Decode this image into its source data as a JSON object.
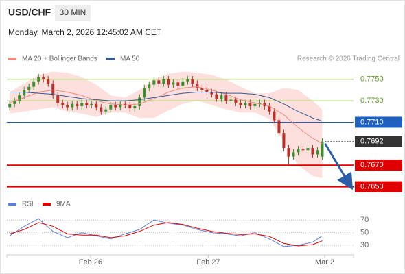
{
  "header": {
    "symbol": "USD/CHF",
    "interval": "30 MIN",
    "timestamp": "Monday, March 2, 2026 12:45:02 AM CET",
    "credit": "Research © 2026 Trading Central"
  },
  "chart_data": [
    {
      "type": "candlestick",
      "xlim": [
        -0.6,
        71.5
      ],
      "ylim": [
        0.7644,
        0.776
      ],
      "up_color": "#3c8d2f",
      "down_color": "#b8322a",
      "candles": {
        "open": [
          0.7724,
          0.7727,
          0.773,
          0.7735,
          0.774,
          0.7743,
          0.7748,
          0.7752,
          0.775,
          0.7746,
          0.7735,
          0.7728,
          0.7726,
          0.7724,
          0.7727,
          0.7725,
          0.7728,
          0.7726,
          0.7727,
          0.7724,
          0.772,
          0.7722,
          0.7726,
          0.7724,
          0.7727,
          0.7726,
          0.7723,
          0.7725,
          0.7733,
          0.7742,
          0.7745,
          0.7749,
          0.7746,
          0.775,
          0.7745,
          0.7747,
          0.7744,
          0.7748,
          0.775,
          0.7746,
          0.7742,
          0.774,
          0.7738,
          0.7736,
          0.7732,
          0.7735,
          0.773,
          0.7731,
          0.7728,
          0.7726,
          0.7728,
          0.7725,
          0.7727,
          0.7728,
          0.7725,
          0.772,
          0.7712,
          0.77,
          0.7686,
          0.7678,
          0.7682,
          0.7685,
          0.7684,
          0.7686,
          0.768,
          0.7678
        ],
        "high": [
          0.773,
          0.7733,
          0.7738,
          0.7743,
          0.7746,
          0.7751,
          0.7755,
          0.7755,
          0.7753,
          0.7749,
          0.7738,
          0.7731,
          0.7729,
          0.773,
          0.773,
          0.7731,
          0.7731,
          0.773,
          0.773,
          0.7727,
          0.7725,
          0.7729,
          0.7729,
          0.773,
          0.773,
          0.7729,
          0.7728,
          0.7736,
          0.7745,
          0.7748,
          0.7752,
          0.7752,
          0.7753,
          0.7753,
          0.775,
          0.775,
          0.7751,
          0.7753,
          0.7753,
          0.7749,
          0.7745,
          0.7743,
          0.7741,
          0.7739,
          0.7738,
          0.7738,
          0.7734,
          0.7734,
          0.7731,
          0.7731,
          0.7731,
          0.773,
          0.7731,
          0.7731,
          0.7728,
          0.7723,
          0.7715,
          0.7703,
          0.7689,
          0.7685,
          0.7688,
          0.7688,
          0.7689,
          0.7689,
          0.7687,
          0.7695
        ],
        "low": [
          0.7721,
          0.7724,
          0.7727,
          0.7732,
          0.7737,
          0.774,
          0.7745,
          0.7747,
          0.7743,
          0.7732,
          0.7725,
          0.7723,
          0.7721,
          0.7721,
          0.7722,
          0.7722,
          0.7723,
          0.7723,
          0.7721,
          0.7717,
          0.7717,
          0.7719,
          0.7721,
          0.7721,
          0.7723,
          0.772,
          0.772,
          0.7722,
          0.773,
          0.7739,
          0.7742,
          0.7743,
          0.7743,
          0.7742,
          0.7742,
          0.7741,
          0.7741,
          0.7745,
          0.7743,
          0.7739,
          0.7737,
          0.7735,
          0.7733,
          0.7729,
          0.7729,
          0.7727,
          0.7727,
          0.7725,
          0.7723,
          0.7723,
          0.7722,
          0.7722,
          0.7724,
          0.7722,
          0.7717,
          0.7709,
          0.7697,
          0.7683,
          0.7669,
          0.7675,
          0.7679,
          0.7681,
          0.7681,
          0.7677,
          0.7677,
          0.7675
        ],
        "close": [
          0.7727,
          0.773,
          0.7735,
          0.774,
          0.7743,
          0.7748,
          0.7752,
          0.775,
          0.7746,
          0.7735,
          0.7728,
          0.7726,
          0.7724,
          0.7727,
          0.7725,
          0.7728,
          0.7726,
          0.7727,
          0.7724,
          0.772,
          0.7722,
          0.7726,
          0.7724,
          0.7727,
          0.7726,
          0.7723,
          0.7725,
          0.7733,
          0.7742,
          0.7745,
          0.7749,
          0.7746,
          0.775,
          0.7745,
          0.7747,
          0.7744,
          0.7748,
          0.775,
          0.7746,
          0.7742,
          0.774,
          0.7738,
          0.7736,
          0.7732,
          0.7735,
          0.773,
          0.7731,
          0.7728,
          0.7726,
          0.7728,
          0.7725,
          0.7727,
          0.7728,
          0.7725,
          0.772,
          0.7712,
          0.77,
          0.7686,
          0.7678,
          0.7682,
          0.7685,
          0.7684,
          0.7686,
          0.768,
          0.7684,
          0.7692
        ]
      },
      "overlays": {
        "x": [
          0,
          3,
          6,
          9,
          12,
          15,
          18,
          21,
          24,
          27,
          30,
          33,
          36,
          39,
          42,
          45,
          48,
          51,
          54,
          57,
          60,
          63,
          65
        ],
        "series": [
          {
            "name": "MA 20 + Bollinger Bands",
            "color": "#f08a80",
            "band_color": "#fde0dd",
            "values": [
              0.7728,
              0.7733,
              0.7738,
              0.774,
              0.7738,
              0.7735,
              0.773,
              0.7727,
              0.7726,
              0.7727,
              0.7732,
              0.7738,
              0.7742,
              0.7743,
              0.774,
              0.7736,
              0.7731,
              0.7728,
              0.7725,
              0.7717,
              0.7705,
              0.7695,
              0.769
            ],
            "upper": [
              0.7738,
              0.7746,
              0.7754,
              0.7757,
              0.7756,
              0.7752,
              0.7745,
              0.7735,
              0.7733,
              0.774,
              0.775,
              0.7755,
              0.7757,
              0.7756,
              0.7754,
              0.775,
              0.7743,
              0.7737,
              0.7737,
              0.7742,
              0.774,
              0.773,
              0.7722
            ],
            "lower": [
              0.7718,
              0.772,
              0.7722,
              0.7724,
              0.772,
              0.7718,
              0.7715,
              0.7719,
              0.7719,
              0.7714,
              0.7714,
              0.7721,
              0.7727,
              0.773,
              0.7726,
              0.7722,
              0.7719,
              0.7719,
              0.7713,
              0.7692,
              0.767,
              0.766,
              0.7658
            ]
          },
          {
            "name": "MA 50",
            "color": "#36598f",
            "values": [
              0.7738,
              0.7738,
              0.7737,
              0.7736,
              0.7734,
              0.7732,
              0.7731,
              0.773,
              0.773,
              0.7731,
              0.7733,
              0.7735,
              0.7737,
              0.7738,
              0.7738,
              0.7737,
              0.7737,
              0.7736,
              0.7733,
              0.7727,
              0.772,
              0.7714,
              0.7711
            ]
          }
        ]
      },
      "levels": [
        {
          "value": 0.775,
          "label": "0.7750",
          "color": "#9ccc65",
          "text_color": "#5c9a1f",
          "box": false,
          "line": "solid"
        },
        {
          "value": 0.773,
          "label": "0.7730",
          "color": "#9ccc65",
          "text_color": "#5c9a1f",
          "box": false,
          "line": "solid"
        },
        {
          "value": 0.771,
          "label": "0.7710",
          "color": "#1f5fbf",
          "text_color": "#ffffff",
          "box": true,
          "line": "solid"
        },
        {
          "value": 0.7692,
          "label": "0.7692",
          "color": "#333333",
          "text_color": "#ffffff",
          "box": true,
          "line": "dotted"
        },
        {
          "value": 0.767,
          "label": "0.7670",
          "color": "#e00000",
          "text_color": "#ffffff",
          "box": true,
          "line": "solid"
        },
        {
          "value": 0.765,
          "label": "0.7650",
          "color": "#e00000",
          "text_color": "#ffffff",
          "box": true,
          "line": "solid"
        }
      ],
      "arrow": {
        "x": [
          65.6,
          70.7
        ],
        "y": [
          0.769,
          0.7652
        ],
        "color": "#2b5ea8"
      }
    },
    {
      "type": "line",
      "xlim": [
        -0.6,
        71.5
      ],
      "ylim": [
        17,
        80
      ],
      "yticks": [
        30,
        50,
        70
      ],
      "grid": true,
      "xticks": [
        {
          "value": 16.8,
          "label": "Feb 26"
        },
        {
          "value": 41.3,
          "label": "Feb 27"
        },
        {
          "value": 65.5,
          "label": "Mar 2"
        }
      ],
      "x": [
        0,
        3,
        6,
        9,
        12,
        15,
        18,
        21,
        24,
        27,
        30,
        33,
        36,
        39,
        42,
        45,
        48,
        51,
        54,
        57,
        60,
        63,
        65
      ],
      "series": [
        {
          "name": "RSI",
          "color": "#5b7fd6",
          "values": [
            45,
            60,
            72,
            52,
            42,
            50,
            45,
            40,
            48,
            55,
            70,
            65,
            62,
            55,
            50,
            48,
            45,
            50,
            40,
            28,
            30,
            35,
            45
          ]
        },
        {
          "name": "9MA",
          "color": "#e00000",
          "values": [
            48,
            55,
            66,
            60,
            48,
            46,
            46,
            42,
            45,
            52,
            62,
            66,
            63,
            57,
            52,
            49,
            47,
            48,
            44,
            33,
            29,
            31,
            37
          ]
        }
      ]
    }
  ]
}
